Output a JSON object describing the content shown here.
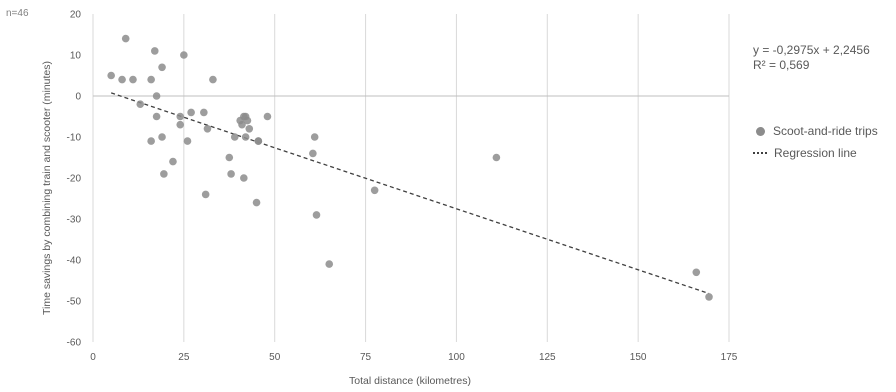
{
  "note": "n=46",
  "equation": "y = -0,2975x + 2,2456",
  "r2": "R² = 0,569",
  "colors": {
    "points": "#8c8c8c",
    "regression": "#404040",
    "grid": "#d9d9d9",
    "zero_line": "#bfbfbf"
  },
  "chart_data": {
    "type": "scatter",
    "xlabel": "Total distance (kilometres)",
    "ylabel": "Time savings by combining train and scooter (minutes)",
    "xlim": [
      0,
      175
    ],
    "ylim": [
      -60,
      20
    ],
    "xticks": [
      0,
      25,
      50,
      75,
      100,
      125,
      150,
      175
    ],
    "yticks": [
      -60,
      -50,
      -40,
      -30,
      -20,
      -10,
      0,
      10,
      20
    ],
    "x_tick_labels": [
      "0",
      "25",
      "50",
      "75",
      "100",
      "125",
      "150",
      "175"
    ],
    "y_tick_labels": [
      "-60",
      "-50",
      "-40",
      "-30",
      "-20",
      "-10",
      "0",
      "10",
      "20"
    ],
    "grid": {
      "vertical": true,
      "horizontal": false
    },
    "legend_position": "right",
    "series": [
      {
        "name": "Scoot-and-ride trips",
        "points": [
          [
            5,
            5
          ],
          [
            8,
            4
          ],
          [
            9,
            14
          ],
          [
            11,
            4
          ],
          [
            13,
            -2
          ],
          [
            16,
            4
          ],
          [
            16,
            -11
          ],
          [
            17,
            11
          ],
          [
            17.5,
            0
          ],
          [
            17.5,
            -5
          ],
          [
            19,
            7
          ],
          [
            19,
            -10
          ],
          [
            19.5,
            -19
          ],
          [
            22,
            -16
          ],
          [
            24,
            -5
          ],
          [
            24,
            -7
          ],
          [
            25,
            10
          ],
          [
            26,
            -11
          ],
          [
            27,
            -4
          ],
          [
            30.5,
            -4
          ],
          [
            31,
            -24
          ],
          [
            31.5,
            -8
          ],
          [
            33,
            4
          ],
          [
            37.5,
            -15
          ],
          [
            38,
            -19
          ],
          [
            39,
            -10
          ],
          [
            40.5,
            -6
          ],
          [
            41,
            -7
          ],
          [
            41.5,
            -5
          ],
          [
            42,
            -5
          ],
          [
            41.5,
            -20
          ],
          [
            42,
            -10
          ],
          [
            42.5,
            -6
          ],
          [
            43,
            -8
          ],
          [
            45,
            -26
          ],
          [
            45.5,
            -11
          ],
          [
            45.5,
            -11
          ],
          [
            48,
            -5
          ],
          [
            60.5,
            -14
          ],
          [
            61,
            -10
          ],
          [
            61.5,
            -29
          ],
          [
            65,
            -41
          ],
          [
            77.5,
            -23
          ],
          [
            111,
            -15
          ],
          [
            166,
            -43
          ],
          [
            169.5,
            -49
          ]
        ]
      },
      {
        "name": "Regression line",
        "type": "line",
        "slope": -0.2975,
        "intercept": 2.2456,
        "x_range": [
          5,
          169.5
        ]
      }
    ]
  }
}
